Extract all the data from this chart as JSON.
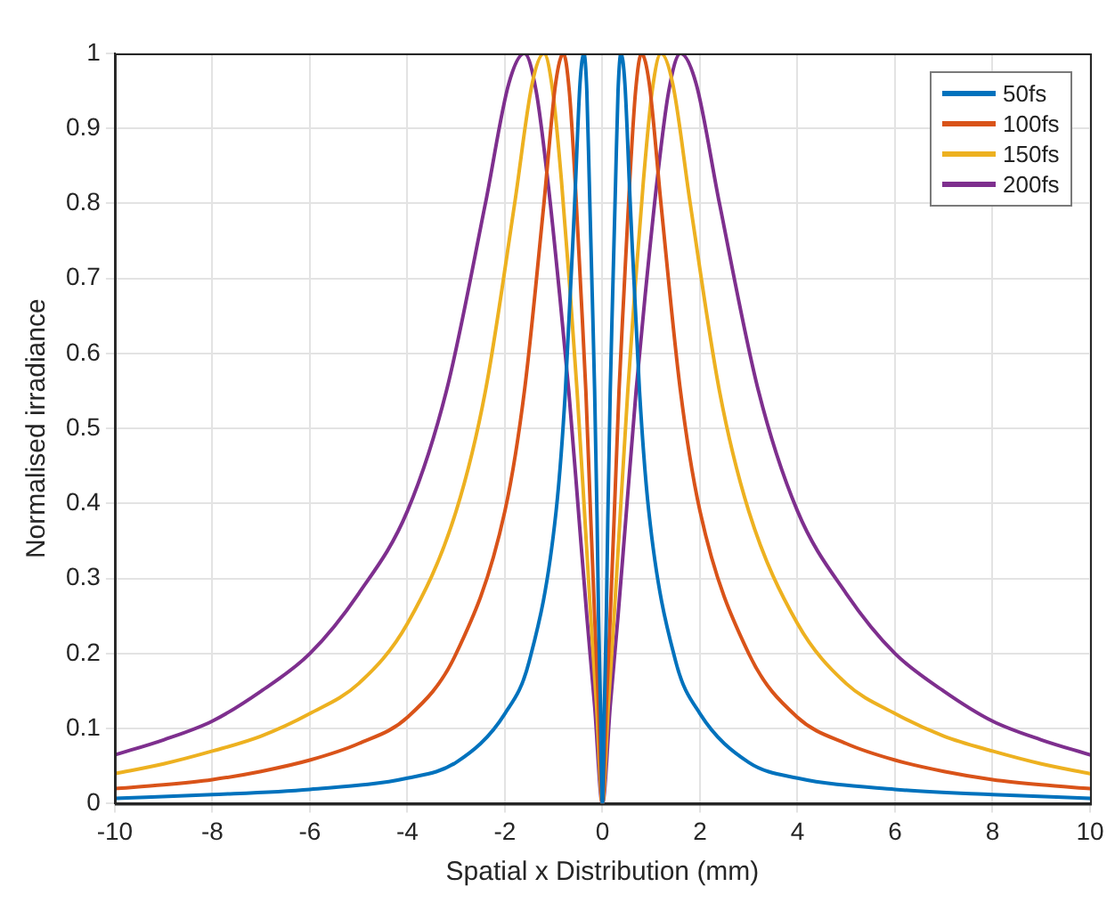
{
  "chart_data": {
    "type": "line",
    "xlabel": "Spatial x Distribution (mm)",
    "ylabel": "Normalised irradiance",
    "xlim": [
      -10,
      10
    ],
    "xticks": [
      -10,
      -8,
      -6,
      -4,
      -2,
      0,
      2,
      4,
      6,
      8,
      10
    ],
    "ylim": [
      0,
      1
    ],
    "yticks": [
      0,
      0.1,
      0.2,
      0.3,
      0.4,
      0.5,
      0.6,
      0.7,
      0.8,
      0.9,
      1
    ],
    "grid": true,
    "legend": "top right",
    "marker": "none",
    "line_style": "solid",
    "series": [
      {
        "name": "50fs",
        "color": "#0072bd",
        "x": [
          -10,
          -8,
          -6,
          -4,
          -3,
          -2,
          -1.5,
          -0.95,
          -0.76,
          -0.57,
          -0.46,
          -0.38,
          -0.32,
          -0.27,
          -0.21,
          -0.16,
          -0.11,
          -0.08,
          -0.04,
          0,
          0.04,
          0.08,
          0.11,
          0.16,
          0.21,
          0.27,
          0.32,
          0.38,
          0.46,
          0.57,
          0.76,
          0.95,
          1.5,
          2,
          3,
          4,
          6,
          8,
          10
        ],
        "values": [
          0.007,
          0.012,
          0.019,
          0.034,
          0.055,
          0.12,
          0.19,
          0.39,
          0.55,
          0.8,
          0.96,
          1,
          0.95,
          0.83,
          0.68,
          0.55,
          0.38,
          0.25,
          0.13,
          0,
          0.13,
          0.25,
          0.38,
          0.55,
          0.68,
          0.83,
          0.95,
          1,
          0.96,
          0.8,
          0.55,
          0.39,
          0.19,
          0.12,
          0.055,
          0.034,
          0.019,
          0.012,
          0.007
        ]
      },
      {
        "name": "100fs",
        "color": "#d95319",
        "x": [
          -10,
          -9,
          -8,
          -7,
          -6,
          -5,
          -4,
          -3,
          -2,
          -1.6,
          -1.2,
          -0.96,
          -0.8,
          -0.68,
          -0.56,
          -0.44,
          -0.34,
          -0.24,
          -0.16,
          -0.08,
          0,
          0.08,
          0.16,
          0.24,
          0.34,
          0.44,
          0.56,
          0.68,
          0.8,
          0.96,
          1.2,
          1.6,
          2,
          3,
          4,
          5,
          6,
          7,
          8,
          9,
          10
        ],
        "values": [
          0.02,
          0.025,
          0.032,
          0.043,
          0.058,
          0.08,
          0.115,
          0.2,
          0.39,
          0.55,
          0.8,
          0.96,
          1,
          0.95,
          0.83,
          0.68,
          0.55,
          0.38,
          0.25,
          0.13,
          0,
          0.13,
          0.25,
          0.38,
          0.55,
          0.68,
          0.83,
          0.95,
          1,
          0.96,
          0.8,
          0.55,
          0.39,
          0.2,
          0.115,
          0.08,
          0.058,
          0.043,
          0.032,
          0.025,
          0.02
        ]
      },
      {
        "name": "150fs",
        "color": "#edb120",
        "x": [
          -10,
          -9,
          -8,
          -7,
          -6,
          -5,
          -4,
          -3,
          -2.4,
          -1.8,
          -1.44,
          -1.2,
          -1.02,
          -0.84,
          -0.66,
          -0.52,
          -0.36,
          -0.24,
          -0.12,
          0,
          0.12,
          0.24,
          0.36,
          0.52,
          0.66,
          0.84,
          1.02,
          1.2,
          1.44,
          1.8,
          2.4,
          3,
          4,
          5,
          6,
          7,
          8,
          9,
          10
        ],
        "values": [
          0.04,
          0.053,
          0.07,
          0.09,
          0.12,
          0.16,
          0.24,
          0.39,
          0.55,
          0.8,
          0.96,
          1,
          0.95,
          0.83,
          0.68,
          0.55,
          0.38,
          0.25,
          0.13,
          0,
          0.13,
          0.25,
          0.38,
          0.55,
          0.68,
          0.83,
          0.95,
          1,
          0.96,
          0.8,
          0.55,
          0.39,
          0.24,
          0.16,
          0.12,
          0.09,
          0.07,
          0.053,
          0.04
        ]
      },
      {
        "name": "200fs",
        "color": "#7e2f8e",
        "x": [
          -10,
          -9,
          -8,
          -7,
          -6,
          -5,
          -4,
          -3.2,
          -2.4,
          -1.92,
          -1.6,
          -1.36,
          -1.12,
          -0.88,
          -0.69,
          -0.48,
          -0.32,
          -0.16,
          0,
          0.16,
          0.32,
          0.48,
          0.69,
          0.88,
          1.12,
          1.36,
          1.6,
          1.92,
          2.4,
          3.2,
          4,
          5,
          6,
          7,
          8,
          9,
          10
        ],
        "values": [
          0.065,
          0.085,
          0.11,
          0.15,
          0.2,
          0.28,
          0.39,
          0.55,
          0.8,
          0.96,
          1,
          0.95,
          0.83,
          0.68,
          0.55,
          0.38,
          0.25,
          0.13,
          0,
          0.13,
          0.25,
          0.38,
          0.55,
          0.68,
          0.83,
          0.95,
          1,
          0.96,
          0.8,
          0.55,
          0.39,
          0.28,
          0.2,
          0.15,
          0.11,
          0.085,
          0.065
        ]
      }
    ]
  }
}
